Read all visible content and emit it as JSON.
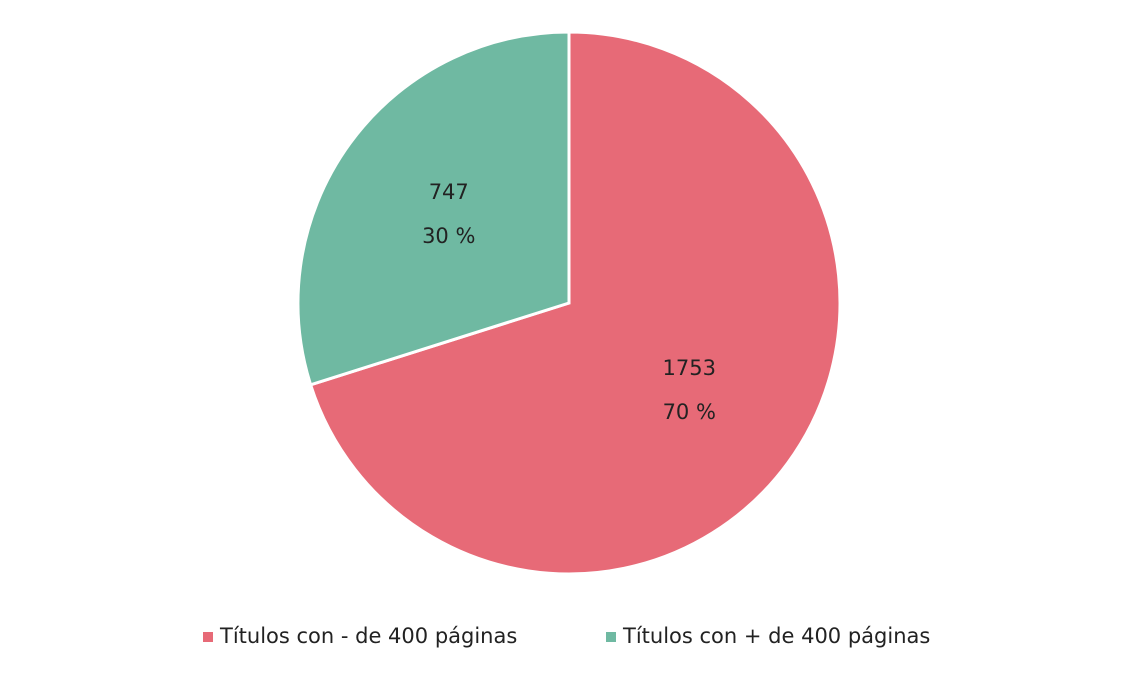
{
  "chart_data": {
    "type": "pie",
    "categories": [
      "Títulos con - de 400 páginas",
      "Títulos con + de 400 páginas"
    ],
    "values": [
      1753,
      747
    ],
    "percent_labels": [
      "70 %",
      "30 %"
    ],
    "colors": [
      "#e76a77",
      "#6fb9a2"
    ],
    "legend": "bottom"
  }
}
